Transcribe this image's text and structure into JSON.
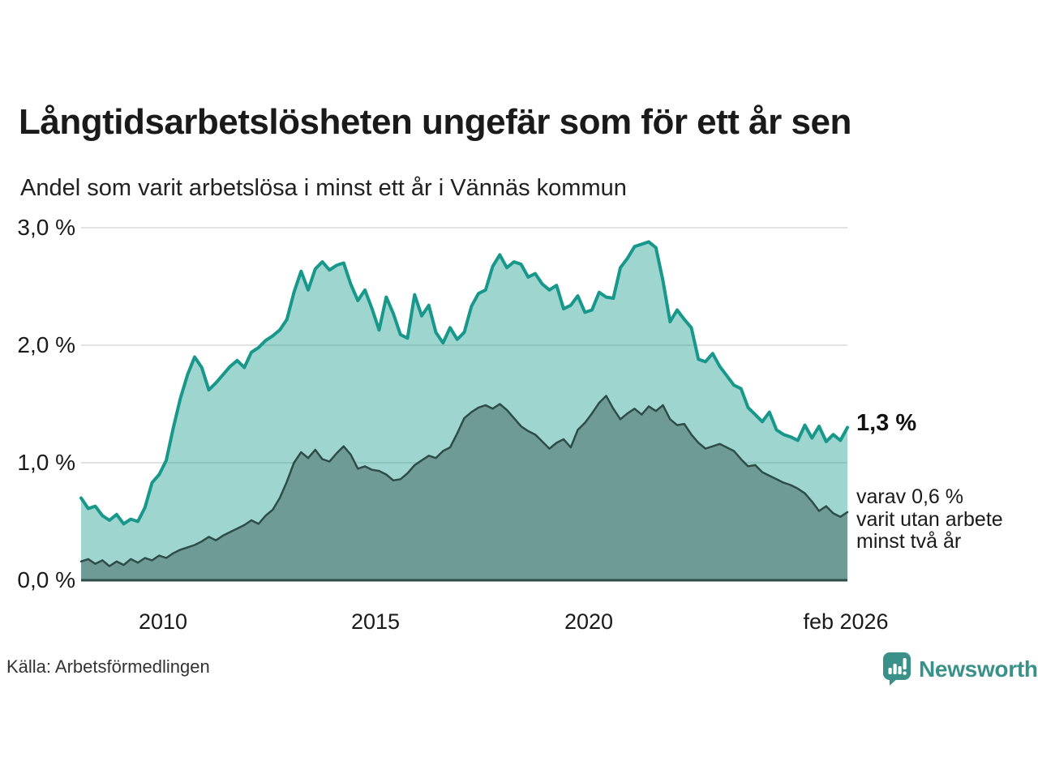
{
  "header": {
    "title": "Långtidsarbetslösheten ungefär som för ett år sen",
    "subtitle": "Andel som varit arbetslösa i minst ett år i Vännäs kommun"
  },
  "chart_data": {
    "type": "area",
    "title": "Långtidsarbetslösheten ungefär som för ett år sen",
    "subtitle": "Andel som varit arbetslösa i minst ett år i Vännäs kommun",
    "unit": "%",
    "grid": "horizontal",
    "legend_position": "none",
    "x_axis": {
      "range_years": [
        2008.083,
        2026.083
      ],
      "tick_labels": [
        "2010",
        "2015",
        "2020",
        "feb 2026"
      ],
      "tick_values_years": [
        2010,
        2015,
        2020,
        2026.083
      ]
    },
    "y_axis": {
      "range": [
        0,
        3.0
      ],
      "tick_labels_top_to_bottom": [
        "3,0 %",
        "2,0 %",
        "1,0 %",
        "0,0 %"
      ],
      "tick_values": [
        3.0,
        2.0,
        1.0,
        0.0
      ]
    },
    "x_start_year": 2008.083,
    "x_step_years": 0.16667,
    "series": [
      {
        "name": "Andel som varit arbetslösa i minst ett år",
        "line_color": "#17988b",
        "fill_color": "rgba(25,154,140,0.42)",
        "end_value_label": "1,3 %",
        "end_value": 1.3,
        "values": [
          0.7,
          0.61,
          0.63,
          0.55,
          0.51,
          0.56,
          0.48,
          0.52,
          0.5,
          0.62,
          0.83,
          0.9,
          1.02,
          1.3,
          1.55,
          1.75,
          1.9,
          1.81,
          1.62,
          1.68,
          1.75,
          1.82,
          1.87,
          1.81,
          1.94,
          1.98,
          2.04,
          2.08,
          2.13,
          2.22,
          2.45,
          2.63,
          2.47,
          2.65,
          2.71,
          2.64,
          2.68,
          2.7,
          2.52,
          2.38,
          2.47,
          2.31,
          2.13,
          2.41,
          2.27,
          2.09,
          2.06,
          2.43,
          2.25,
          2.34,
          2.11,
          2.02,
          2.15,
          2.05,
          2.11,
          2.33,
          2.44,
          2.47,
          2.67,
          2.77,
          2.66,
          2.71,
          2.69,
          2.58,
          2.61,
          2.52,
          2.47,
          2.51,
          2.31,
          2.34,
          2.42,
          2.28,
          2.3,
          2.45,
          2.41,
          2.4,
          2.66,
          2.74,
          2.84,
          2.86,
          2.88,
          2.83,
          2.55,
          2.2,
          2.3,
          2.22,
          2.15,
          1.88,
          1.86,
          1.93,
          1.82,
          1.74,
          1.66,
          1.63,
          1.47,
          1.41,
          1.35,
          1.43,
          1.28,
          1.24,
          1.22,
          1.19,
          1.32,
          1.21,
          1.31,
          1.18,
          1.24,
          1.19,
          1.3
        ]
      },
      {
        "name": "varav varit utan arbete minst två år",
        "line_color": "#2e4d49",
        "fill_color": "#6f9b96",
        "end_value_label": "varav 0,6 % varit utan arbete minst två år",
        "end_value": 0.6,
        "values": [
          0.16,
          0.18,
          0.14,
          0.17,
          0.12,
          0.16,
          0.13,
          0.18,
          0.15,
          0.19,
          0.17,
          0.21,
          0.19,
          0.23,
          0.26,
          0.28,
          0.3,
          0.33,
          0.37,
          0.34,
          0.38,
          0.41,
          0.44,
          0.47,
          0.51,
          0.48,
          0.55,
          0.6,
          0.7,
          0.84,
          1.0,
          1.09,
          1.04,
          1.11,
          1.03,
          1.01,
          1.08,
          1.14,
          1.07,
          0.95,
          0.97,
          0.94,
          0.93,
          0.9,
          0.85,
          0.86,
          0.91,
          0.98,
          1.02,
          1.06,
          1.04,
          1.1,
          1.13,
          1.25,
          1.38,
          1.43,
          1.47,
          1.49,
          1.46,
          1.5,
          1.45,
          1.38,
          1.31,
          1.27,
          1.24,
          1.18,
          1.12,
          1.17,
          1.2,
          1.13,
          1.28,
          1.34,
          1.42,
          1.51,
          1.57,
          1.46,
          1.37,
          1.42,
          1.46,
          1.41,
          1.48,
          1.44,
          1.49,
          1.37,
          1.32,
          1.33,
          1.24,
          1.17,
          1.12,
          1.14,
          1.16,
          1.13,
          1.1,
          1.03,
          0.97,
          0.98,
          0.92,
          0.89,
          0.86,
          0.83,
          0.81,
          0.78,
          0.74,
          0.67,
          0.59,
          0.63,
          0.57,
          0.54,
          0.58
        ]
      }
    ]
  },
  "annotations": {
    "end_value_label": "1,3 %",
    "secondary_line1": "varav 0,6 %",
    "secondary_line2": "varit utan arbete",
    "secondary_line3": "minst två år"
  },
  "footer": {
    "source": "Källa: Arbetsförmedlingen",
    "brand_name": "Newsworthy",
    "brand_color": "#3a9189"
  },
  "colors": {
    "background": "#ffffff",
    "gridline": "#d9d9d9",
    "baseline": "#2e4d49",
    "text": "#1a1a1a"
  }
}
